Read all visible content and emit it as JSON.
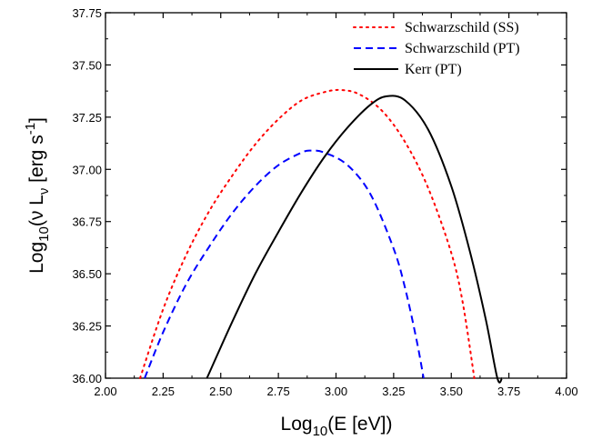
{
  "chart_data": {
    "type": "line",
    "xlabel": {
      "base": "Log",
      "sub": "10",
      "rest": "(E [eV])"
    },
    "ylabel": {
      "base": "Log",
      "sub": "10",
      "mid": "(ν L",
      "sub2": "ν",
      "rest": " [erg s",
      "sup": "-1",
      "end": "]"
    },
    "xlim": [
      2.0,
      4.0
    ],
    "ylim": [
      36.0,
      37.75
    ],
    "x_ticks": [
      2.0,
      2.25,
      2.5,
      2.75,
      3.0,
      3.25,
      3.5,
      3.75,
      4.0
    ],
    "x_tick_labels": [
      "2.00",
      "2.25",
      "2.50",
      "2.75",
      "3.00",
      "3.25",
      "3.50",
      "3.75",
      "4.00"
    ],
    "y_ticks": [
      36.0,
      36.25,
      36.5,
      36.75,
      37.0,
      37.25,
      37.5,
      37.75
    ],
    "y_tick_labels": [
      "36.00",
      "36.25",
      "36.50",
      "36.75",
      "37.00",
      "37.25",
      "37.50",
      "37.75"
    ],
    "grid": false,
    "legend_position": "top-right",
    "series": [
      {
        "name": "Schwarzschild (SS)",
        "color": "#ff0000",
        "style": "dotted",
        "x": [
          2.15,
          2.25,
          2.35,
          2.45,
          2.55,
          2.65,
          2.75,
          2.85,
          2.95,
          3.02,
          3.1,
          3.2,
          3.3,
          3.4,
          3.5,
          3.55,
          3.6
        ],
        "y": [
          36.0,
          36.33,
          36.59,
          36.8,
          36.97,
          37.12,
          37.24,
          37.33,
          37.37,
          37.38,
          37.36,
          37.28,
          37.13,
          36.91,
          36.6,
          36.36,
          36.0
        ]
      },
      {
        "name": "Schwarzschild (PT)",
        "color": "#0000ff",
        "style": "dashed",
        "x": [
          2.17,
          2.25,
          2.35,
          2.45,
          2.55,
          2.65,
          2.75,
          2.85,
          2.89,
          2.95,
          3.05,
          3.15,
          3.25,
          3.3,
          3.35,
          3.38
        ],
        "y": [
          36.0,
          36.22,
          36.45,
          36.63,
          36.79,
          36.92,
          37.02,
          37.08,
          37.09,
          37.08,
          37.02,
          36.88,
          36.62,
          36.43,
          36.18,
          36.0
        ]
      },
      {
        "name": "Kerr (PT)",
        "color": "#000000",
        "style": "solid",
        "x": [
          2.44,
          2.55,
          2.65,
          2.75,
          2.85,
          2.95,
          3.05,
          3.15,
          3.22,
          3.3,
          3.4,
          3.5,
          3.58,
          3.65,
          3.7,
          3.72
        ],
        "y": [
          36.0,
          36.27,
          36.5,
          36.7,
          36.89,
          37.06,
          37.2,
          37.31,
          37.35,
          37.33,
          37.19,
          36.92,
          36.61,
          36.28,
          35.98,
          36.0
        ]
      }
    ]
  }
}
